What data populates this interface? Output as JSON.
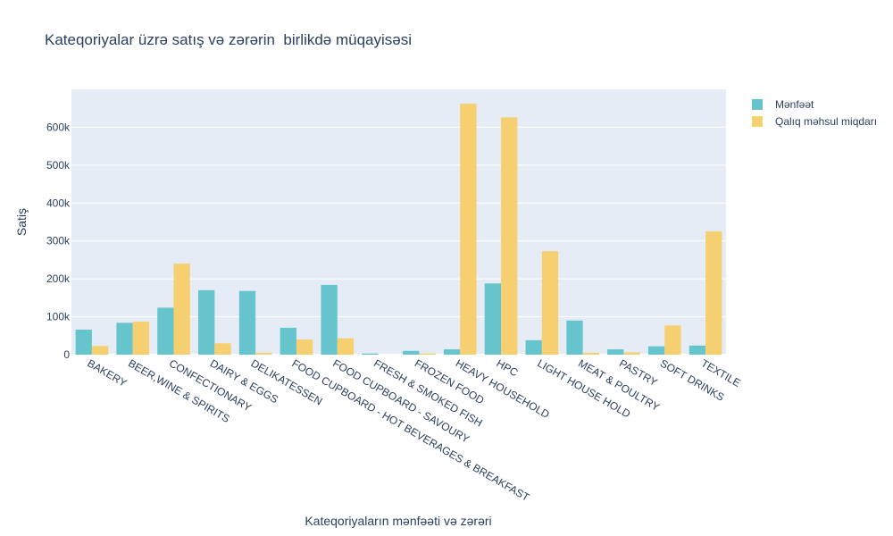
{
  "chart_data": {
    "type": "bar",
    "title": "Kateqoriyalar üzrə satış və zərərin  birlikdə müqayisəsi",
    "xlabel": "Kateqoriyaların mənfəəti və zərəri",
    "ylabel": "Satiş",
    "ylim": [
      0,
      700000
    ],
    "yticks": [
      0,
      100000,
      200000,
      300000,
      400000,
      500000,
      600000
    ],
    "ytick_labels": [
      "0",
      "100k",
      "200k",
      "300k",
      "400k",
      "500k",
      "600k"
    ],
    "grid": true,
    "legend_position": "top-right",
    "categories": [
      "BAKERY",
      "BEER,WINE & SPIRITS",
      "CONFECTIONARY",
      "DAIRY & EGGS",
      "DELIKATESSEN",
      "FOOD CUPBOARD - HOT BEVERAGES & BREAKFAST",
      "FOOD CUPBOARD - SAVOURY",
      "FRESH & SMOKED FISH",
      "FROZEN FOOD",
      "HEAVY HOUSEHOLD",
      "HPC",
      "LIGHT HOUSE HOLD",
      "MEAT & POULTRY",
      "PASTRY",
      "SOFT DRINKS",
      "TEXTILE"
    ],
    "series": [
      {
        "name": "Mənfəət",
        "color": "#66c5cc",
        "values": [
          66000,
          84000,
          124000,
          170000,
          168000,
          71000,
          184000,
          3000,
          10000,
          14000,
          188000,
          38000,
          90000,
          14000,
          22000,
          24000
        ]
      },
      {
        "name": "Qalıq məhsul miqdarı",
        "color": "#f6cf71",
        "values": [
          23000,
          87000,
          240000,
          30000,
          5000,
          40000,
          43000,
          0,
          3000,
          662000,
          626000,
          273000,
          5000,
          6000,
          77000,
          325000
        ]
      }
    ]
  }
}
